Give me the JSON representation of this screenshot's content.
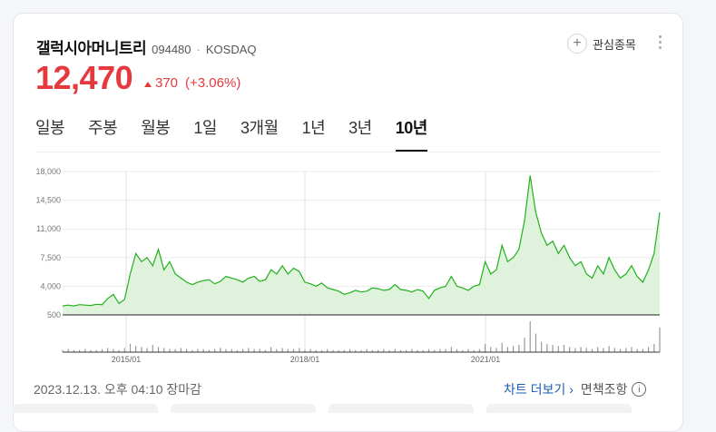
{
  "stock": {
    "name": "갤럭시아머니트리",
    "code": "094480",
    "separator": "·",
    "market": "KOSDAQ",
    "price": "12,470",
    "change": "370",
    "change_pct": "(+3.06%)",
    "watch_label": "관심종목",
    "accent_color": "#e5393e"
  },
  "tabs": [
    {
      "label": "일봉",
      "active": false
    },
    {
      "label": "주봉",
      "active": false
    },
    {
      "label": "월봉",
      "active": false
    },
    {
      "label": "1일",
      "active": false
    },
    {
      "label": "3개월",
      "active": false
    },
    {
      "label": "1년",
      "active": false
    },
    {
      "label": "3년",
      "active": false
    },
    {
      "label": "10년",
      "active": true
    }
  ],
  "chart_data": {
    "type": "area",
    "y_ticks": [
      "18,000",
      "14,500",
      "11,000",
      "7,500",
      "4,000",
      "500"
    ],
    "ylim": [
      500,
      18000
    ],
    "x_ticks": [
      "2015/01",
      "2018/01",
      "2021/01"
    ],
    "series": [
      {
        "values": [
          1600,
          1700,
          1600,
          1750,
          1700,
          1650,
          1800,
          1750,
          2500,
          3000,
          1900,
          2400,
          5500,
          8000,
          7000,
          7500,
          6500,
          8500,
          6000,
          7000,
          5500,
          5000,
          4500,
          4200,
          4500,
          4700,
          4800,
          4300,
          4600,
          5200,
          5000,
          4800,
          4500,
          5000,
          5200,
          4600,
          4800,
          6000,
          5500,
          6500,
          5500,
          6200,
          5800,
          4500,
          4300,
          4000,
          4400,
          3800,
          3600,
          3400,
          3000,
          3200,
          3500,
          3300,
          3400,
          3800,
          3700,
          3500,
          3600,
          4200,
          3600,
          3500,
          3300,
          3600,
          3400,
          2500,
          3500,
          3800,
          4000,
          5200,
          4000,
          3800,
          3500,
          4000,
          4200,
          7000,
          5500,
          6000,
          9000,
          7000,
          7500,
          8500,
          12000,
          17500,
          13000,
          10500,
          9000,
          9500,
          8000,
          9000,
          7500,
          6500,
          7000,
          5500,
          5000,
          6500,
          5500,
          7500,
          6000,
          5000,
          5500,
          6500,
          5200,
          4500,
          6000,
          8000,
          13000
        ]
      }
    ],
    "volume": [
      2,
      3,
      2,
      2,
      3,
      2,
      2,
      3,
      4,
      3,
      2,
      4,
      8,
      6,
      5,
      4,
      7,
      5,
      4,
      3,
      3,
      4,
      3,
      2,
      3,
      3,
      2,
      3,
      4,
      3,
      3,
      2,
      3,
      4,
      3,
      3,
      2,
      5,
      3,
      4,
      3,
      3,
      4,
      2,
      3,
      2,
      2,
      3,
      2,
      2,
      2,
      3,
      2,
      2,
      3,
      2,
      2,
      3,
      2,
      3,
      2,
      2,
      3,
      2,
      2,
      3,
      2,
      3,
      3,
      5,
      3,
      2,
      3,
      2,
      3,
      8,
      5,
      4,
      9,
      5,
      6,
      7,
      14,
      30,
      18,
      10,
      8,
      7,
      6,
      7,
      5,
      4,
      5,
      4,
      3,
      5,
      4,
      6,
      4,
      3,
      4,
      5,
      3,
      3,
      5,
      8,
      24
    ],
    "line_color": "#21b11d",
    "fill_color": "#dff3dc"
  },
  "footer": {
    "timestamp": "2023.12.13. 오후 04:10 장마감",
    "more_chart": "차트 더보기",
    "more_arrow": "›",
    "disclaimer": "면책조항",
    "info_glyph": "i"
  }
}
